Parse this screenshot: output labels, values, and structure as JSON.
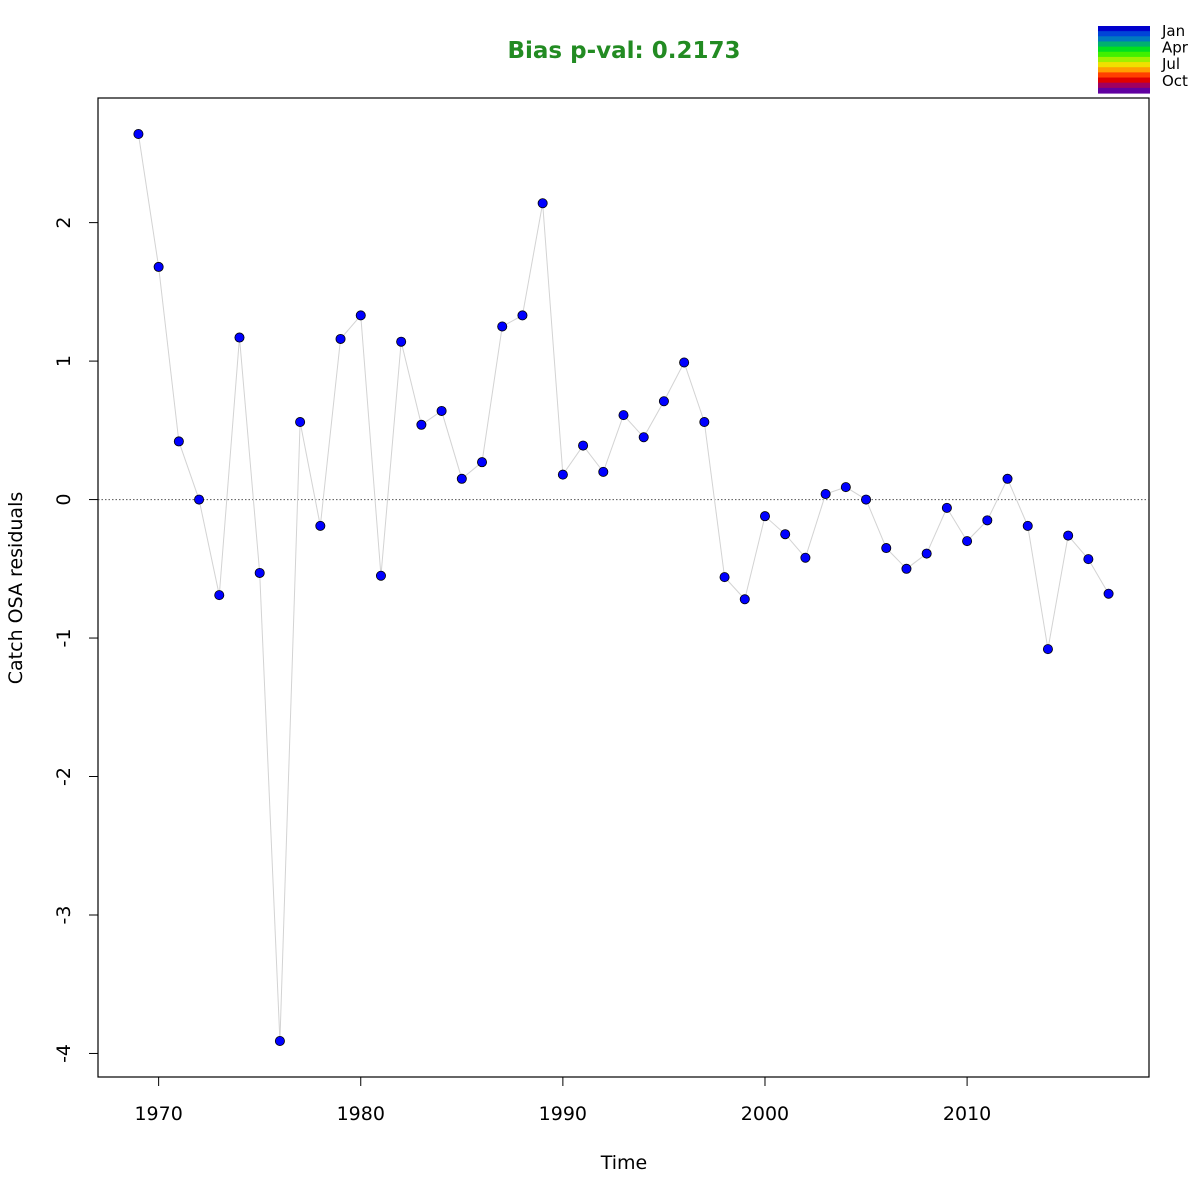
{
  "chart_data": {
    "type": "scatter",
    "title": "Bias p-val: 0.2173",
    "title_color": "#228b22",
    "xlabel": "Time",
    "ylabel": "Catch OSA residuals",
    "xlim": [
      1967,
      2019
    ],
    "ylim": [
      -4.17,
      2.9
    ],
    "x_ticks": [
      1970,
      1980,
      1990,
      2000,
      2010
    ],
    "y_ticks": [
      -4,
      -3,
      -2,
      -1,
      0,
      1,
      2
    ],
    "reference_line_y": 0,
    "grid": false,
    "point_color": "#0000ff",
    "line_color": "#d3d3d3",
    "x": [
      1969,
      1970,
      1971,
      1972,
      1973,
      1974,
      1975,
      1976,
      1977,
      1978,
      1979,
      1980,
      1981,
      1982,
      1983,
      1984,
      1985,
      1986,
      1987,
      1988,
      1989,
      1990,
      1991,
      1992,
      1993,
      1994,
      1995,
      1996,
      1997,
      1998,
      1999,
      2000,
      2001,
      2002,
      2003,
      2004,
      2005,
      2006,
      2007,
      2008,
      2009,
      2010,
      2011,
      2012,
      2013,
      2014,
      2015,
      2016,
      2017
    ],
    "y": [
      2.64,
      1.68,
      0.42,
      0.0,
      -0.69,
      1.17,
      -0.53,
      -3.91,
      0.56,
      -0.19,
      1.16,
      1.33,
      -0.55,
      1.14,
      0.54,
      0.64,
      0.15,
      0.27,
      1.25,
      1.33,
      2.14,
      0.18,
      0.39,
      0.2,
      0.61,
      0.45,
      0.71,
      0.99,
      0.56,
      -0.56,
      -0.72,
      -0.12,
      -0.25,
      -0.42,
      0.04,
      0.09,
      0.0,
      -0.35,
      -0.5,
      -0.39,
      -0.06,
      -0.3,
      -0.15,
      0.15,
      -0.19,
      -1.08,
      -0.26,
      -0.43,
      -0.68
    ],
    "legend": {
      "position": "top-right",
      "labels": [
        "Jan",
        "Apr",
        "Jul",
        "Oct"
      ],
      "colors": [
        "#0000cd",
        "#0044d8",
        "#0078c0",
        "#00b070",
        "#00e020",
        "#40f000",
        "#a0f000",
        "#f0e000",
        "#ffa000",
        "#ff4000",
        "#e00000",
        "#a00060",
        "#6000a0"
      ]
    }
  }
}
